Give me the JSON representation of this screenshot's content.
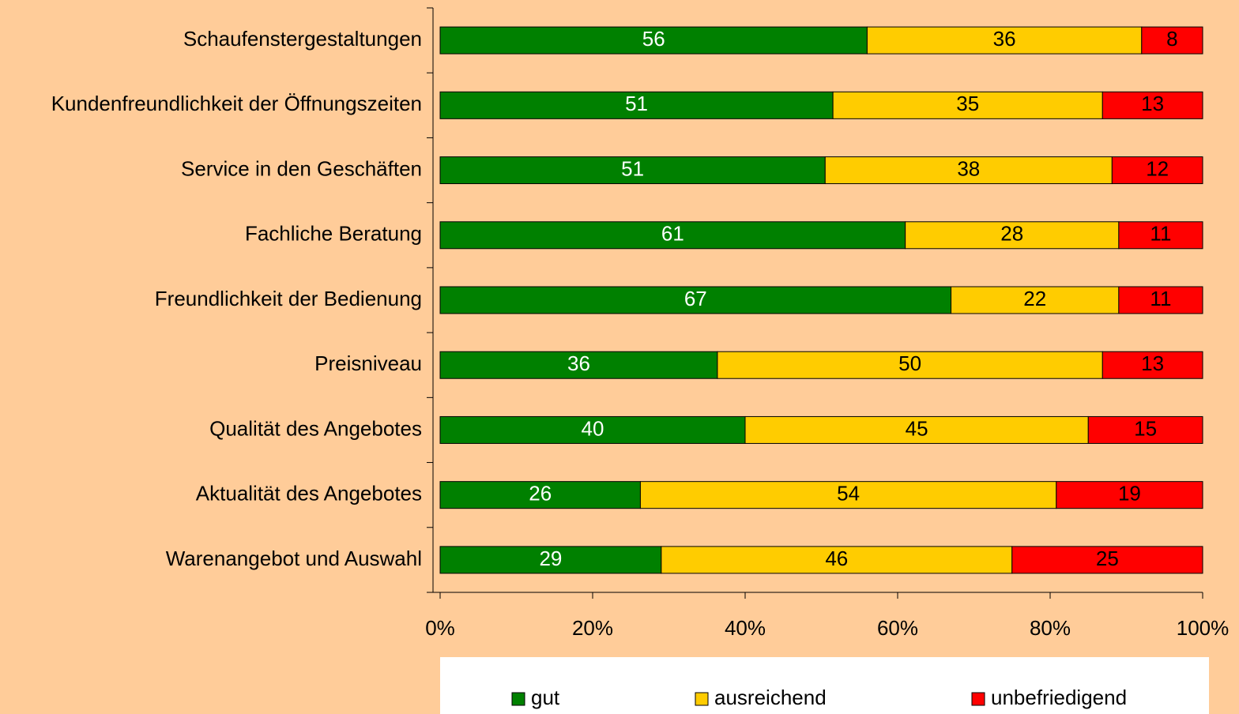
{
  "chart_data": {
    "type": "bar",
    "orientation": "horizontal",
    "stacking": "percent",
    "categories": [
      "Schaufenstergestaltungen",
      "Kundenfreundlichkeit der Öffnungszeiten",
      "Service in den Geschäften",
      "Fachliche Beratung",
      "Freundlichkeit der Bedienung",
      "Preisniveau",
      "Qualität des Angebotes",
      "Aktualität des Angebotes",
      "Warenangebot und Auswahl"
    ],
    "series": [
      {
        "name": "gut",
        "color": "#008000",
        "values": [
          56,
          51,
          51,
          61,
          67,
          36,
          40,
          26,
          29
        ]
      },
      {
        "name": "ausreichend",
        "color": "#ffcc00",
        "values": [
          36,
          35,
          38,
          28,
          22,
          50,
          45,
          54,
          46
        ]
      },
      {
        "name": "unbefriedigend",
        "color": "#ff0000",
        "values": [
          8,
          13,
          12,
          11,
          11,
          13,
          15,
          19,
          25
        ]
      }
    ],
    "xlim": [
      0,
      100
    ],
    "xticks": [
      {
        "value": 0,
        "label": "0%"
      },
      {
        "value": 20,
        "label": "20%"
      },
      {
        "value": 40,
        "label": "40%"
      },
      {
        "value": 60,
        "label": "60%"
      },
      {
        "value": 80,
        "label": "80%"
      },
      {
        "value": 100,
        "label": "100%"
      }
    ],
    "legend": "bottom"
  }
}
